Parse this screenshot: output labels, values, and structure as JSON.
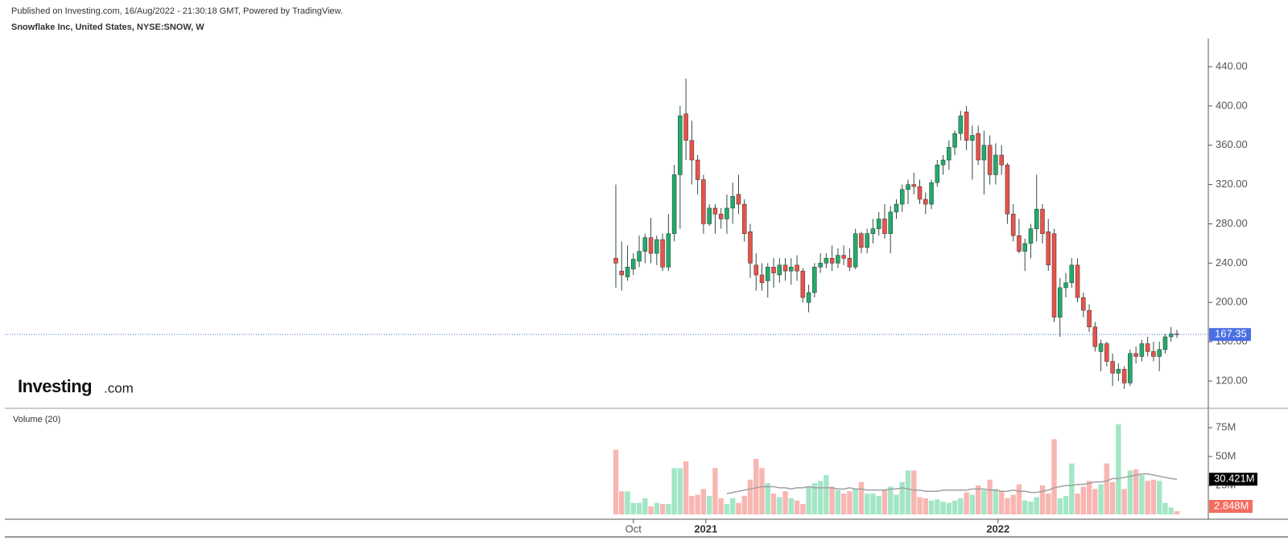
{
  "header": {
    "published": "Published on Investing.com, 16/Aug/2022 - 21:30:18 GMT, Powered by TradingView.",
    "symbol": "Snowflake Inc, United States, NYSE:SNOW, W",
    "logo": "Investing",
    "logo_suffix": ".com"
  },
  "chart_data": {
    "type": "candlestick",
    "open": [
      245,
      232,
      226,
      234,
      242,
      252,
      266,
      250,
      264,
      236,
      270,
      330,
      392,
      365,
      345,
      325,
      280,
      296,
      290,
      285,
      296,
      310,
      300,
      272,
      238,
      228,
      222,
      236,
      228,
      238,
      232,
      238,
      232,
      200,
      210,
      236,
      240,
      245,
      240,
      248,
      245,
      236,
      270,
      256,
      270,
      275,
      285,
      270,
      292,
      300,
      315,
      320,
      318,
      305,
      300,
      322,
      340,
      345,
      358,
      372,
      394,
      365,
      372,
      345,
      360,
      330,
      350,
      340,
      290,
      268,
      252,
      260,
      275,
      295,
      272,
      270,
      185,
      215,
      220,
      238,
      205,
      192,
      175,
      150,
      158,
      140,
      128,
      132,
      118,
      148,
      145,
      158,
      150,
      145,
      152,
      165,
      168
    ],
    "high": [
      320,
      262,
      258,
      250,
      268,
      270,
      286,
      268,
      270,
      290,
      340,
      400,
      428,
      385,
      350,
      330,
      300,
      300,
      296,
      310,
      322,
      330,
      305,
      280,
      250,
      240,
      240,
      245,
      245,
      245,
      245,
      248,
      235,
      218,
      240,
      250,
      250,
      258,
      255,
      258,
      255,
      275,
      272,
      275,
      285,
      292,
      300,
      298,
      305,
      320,
      325,
      332,
      325,
      312,
      325,
      345,
      350,
      365,
      375,
      395,
      400,
      380,
      380,
      375,
      370,
      362,
      360,
      342,
      300,
      285,
      265,
      280,
      330,
      300,
      285,
      275,
      225,
      230,
      245,
      245,
      210,
      198,
      180,
      162,
      160,
      148,
      138,
      135,
      152,
      155,
      162,
      165,
      160,
      160,
      168,
      175,
      172
    ],
    "low": [
      215,
      212,
      222,
      228,
      236,
      240,
      240,
      238,
      232,
      232,
      262,
      275,
      345,
      320,
      310,
      270,
      278,
      270,
      275,
      270,
      280,
      290,
      262,
      225,
      212,
      212,
      205,
      215,
      220,
      222,
      218,
      222,
      200,
      190,
      205,
      230,
      235,
      232,
      235,
      238,
      232,
      234,
      250,
      250,
      260,
      268,
      265,
      250,
      285,
      292,
      300,
      310,
      300,
      290,
      295,
      318,
      330,
      335,
      350,
      365,
      355,
      325,
      340,
      310,
      320,
      320,
      330,
      280,
      262,
      250,
      232,
      245,
      262,
      260,
      232,
      180,
      165,
      205,
      215,
      200,
      185,
      170,
      150,
      130,
      135,
      115,
      120,
      112,
      115,
      138,
      140,
      145,
      140,
      130,
      148,
      160,
      164
    ],
    "close": [
      240,
      228,
      236,
      244,
      252,
      266,
      250,
      264,
      236,
      270,
      330,
      390,
      365,
      345,
      325,
      280,
      296,
      290,
      285,
      296,
      308,
      300,
      270,
      240,
      228,
      220,
      236,
      230,
      238,
      232,
      236,
      232,
      205,
      210,
      236,
      240,
      245,
      240,
      248,
      245,
      236,
      270,
      256,
      270,
      275,
      285,
      270,
      292,
      300,
      315,
      320,
      318,
      305,
      300,
      322,
      340,
      345,
      358,
      372,
      390,
      365,
      370,
      345,
      360,
      330,
      350,
      340,
      290,
      268,
      252,
      260,
      275,
      295,
      270,
      238,
      185,
      215,
      220,
      238,
      205,
      192,
      175,
      155,
      158,
      140,
      128,
      132,
      118,
      148,
      145,
      158,
      150,
      145,
      152,
      165,
      168,
      167.35
    ],
    "up_color": "#22ab6b",
    "down_color": "#e8524a",
    "ylim": [
      92.2,
      468.6
    ],
    "yticks": [
      {
        "value": 120,
        "label": "120.00"
      },
      {
        "value": 160,
        "label": "160.00"
      },
      {
        "value": 200,
        "label": "200.00"
      },
      {
        "value": 240,
        "label": "240.00"
      },
      {
        "value": 280,
        "label": "280.00"
      },
      {
        "value": 320,
        "label": "320.00"
      },
      {
        "value": 360,
        "label": "360.00"
      },
      {
        "value": 400,
        "label": "400.00"
      },
      {
        "value": 440,
        "label": "440.00"
      }
    ],
    "xticks": [
      {
        "value": 3,
        "label": "Oct"
      },
      {
        "value": 15.4,
        "label": "2021"
      },
      {
        "value": 65.4,
        "label": "2022"
      }
    ],
    "last_price": 167.35,
    "last_price_color": "#4a6fe3",
    "volume_title": "Volume (20)",
    "volume": [
      56,
      20,
      20,
      10,
      10,
      14,
      7,
      10,
      9,
      9,
      40,
      40,
      46,
      16,
      17,
      22,
      16,
      40,
      14,
      9,
      14,
      10,
      16,
      30,
      48,
      40,
      27,
      18,
      15,
      20,
      14,
      12,
      9,
      24,
      27,
      29,
      34,
      24,
      21,
      18,
      20,
      22,
      28,
      18,
      18,
      16,
      21,
      24,
      17,
      28,
      38,
      38,
      15,
      14,
      12,
      13,
      11,
      10,
      12,
      14,
      19,
      17,
      25,
      21,
      30,
      22,
      20,
      14,
      17,
      26,
      12,
      11,
      15,
      25,
      18,
      65,
      14,
      16,
      44,
      18,
      24,
      29,
      22,
      26,
      44,
      28,
      78,
      22,
      38,
      39,
      34,
      29,
      30,
      29,
      10,
      6,
      2.848
    ],
    "volume_up_color": "#a3e6c6",
    "volume_down_color": "#f8b6b2",
    "volume_ma": [
      null,
      null,
      null,
      null,
      null,
      null,
      null,
      null,
      null,
      null,
      null,
      null,
      null,
      null,
      null,
      null,
      null,
      null,
      null,
      18,
      19,
      20,
      21,
      22,
      23,
      24,
      24,
      24,
      23,
      23,
      22,
      23,
      23,
      24,
      23,
      23,
      23,
      23,
      22,
      22,
      23,
      22,
      22,
      21,
      21,
      21,
      21,
      22,
      22,
      23,
      22,
      21,
      21,
      20,
      20,
      20,
      21,
      21,
      21,
      21,
      21,
      22,
      22,
      22,
      21,
      21,
      20,
      20,
      21,
      20,
      20,
      19,
      19,
      20,
      21,
      23,
      24,
      25,
      25,
      26,
      26,
      27,
      28,
      28,
      29,
      31,
      31,
      32,
      33,
      34,
      35,
      35,
      34,
      33,
      32,
      31,
      30.421
    ],
    "volume_ma_color": "#a0a0a0",
    "volume_ma_label": {
      "value": 30.421,
      "label": "30.421M"
    },
    "volume_last_label": {
      "value": 2.848,
      "label": "2.848M"
    },
    "volume_ylim": [
      0,
      88.9
    ],
    "volume_yticks": [
      {
        "value": 25,
        "label": "25M"
      },
      {
        "value": 50,
        "label": "50M"
      },
      {
        "value": 75,
        "label": "75M"
      }
    ]
  }
}
